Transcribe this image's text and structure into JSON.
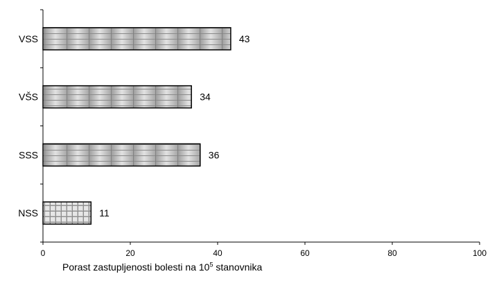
{
  "chart_data": {
    "type": "bar",
    "orientation": "horizontal",
    "categories": [
      "VSS",
      "VŠS",
      "SSS",
      "NSS"
    ],
    "values": [
      43,
      34,
      36,
      11
    ],
    "xlim": [
      0,
      100
    ],
    "x_ticks": [
      0,
      20,
      40,
      60,
      80,
      100
    ],
    "xlabel": {
      "text": "Porast zastupljenosti  bolesti  na 10",
      "superscript": "5",
      "suffix": " stanovnika"
    },
    "ylabel": "",
    "title": "",
    "legend": "none",
    "grid": false,
    "data_labels": true,
    "colors": {
      "bar_fill": "#b5b5b5",
      "bar_fill_light": "#e2e2e2",
      "bar_stroke": "#000000",
      "axis": "#000000"
    }
  }
}
